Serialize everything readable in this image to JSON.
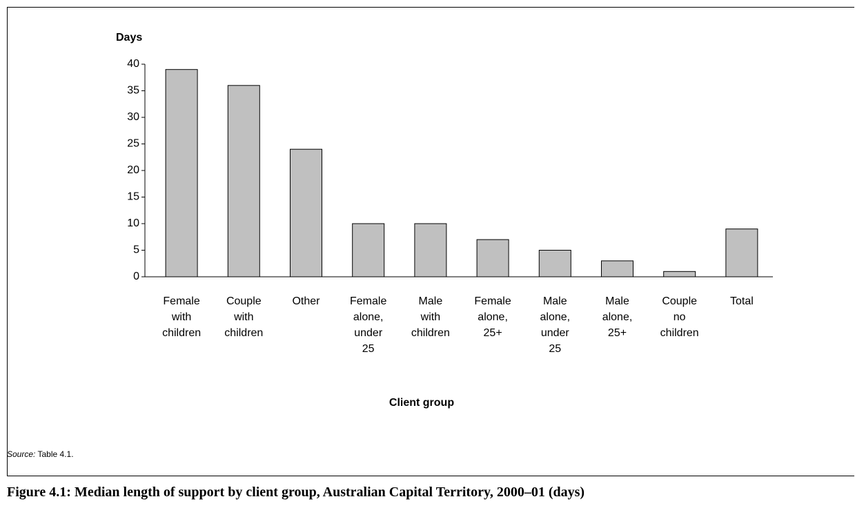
{
  "chart_data": {
    "type": "bar",
    "title": "Figure 4.1: Median length of support by client group, Australian Capital Territory, 2000–01 (days)",
    "y_label": "Days",
    "x_label": "Client group",
    "source_label": "Source:",
    "source_text": "Table 4.1.",
    "categories": [
      "Female\nwith\nchildren",
      "Couple\nwith\nchildren",
      "Other",
      "Female\nalone,\nunder\n25",
      "Male\nwith\nchildren",
      "Female\nalone,\n25+",
      "Male\nalone,\nunder\n25",
      "Male\nalone,\n25+",
      "Couple\nno\nchildren",
      "Total"
    ],
    "values": [
      39,
      36,
      24,
      10,
      10,
      7,
      5,
      3,
      1,
      9
    ],
    "color": "#c0c0c0",
    "ylim": [
      0,
      40
    ],
    "yticks": [
      0,
      5,
      10,
      15,
      20,
      25,
      30,
      35,
      40
    ],
    "grid": false
  }
}
